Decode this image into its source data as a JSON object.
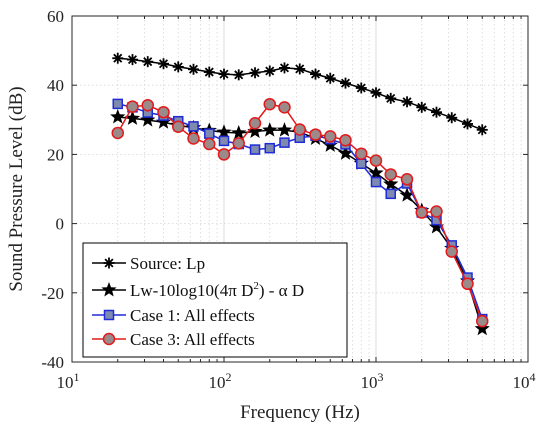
{
  "chart_data": {
    "type": "line",
    "xscale": "log",
    "xlim": [
      10,
      10000
    ],
    "ylim": [
      -40,
      60
    ],
    "grid": true,
    "legend_position": "bottom-left",
    "xlabel": "Frequency (Hz)",
    "ylabel": "Sound Pressure Level (dB)",
    "x_ticks": [
      {
        "value": 10,
        "base": "10",
        "exp": "1"
      },
      {
        "value": 100,
        "base": "10",
        "exp": "2"
      },
      {
        "value": 1000,
        "base": "10",
        "exp": "3"
      },
      {
        "value": 10000,
        "base": "10",
        "exp": "4"
      }
    ],
    "y_ticks": [
      "-40",
      "-20",
      "0",
      "20",
      "40",
      "60"
    ],
    "x": [
      20,
      25,
      31.5,
      40,
      50,
      63,
      80,
      100,
      125,
      160,
      200,
      250,
      315,
      400,
      500,
      630,
      800,
      1000,
      1250,
      1600,
      2000,
      2500,
      3150,
      4000,
      5000
    ],
    "series": [
      {
        "name": "Source: Lp",
        "color": "#000000",
        "marker": "asterisk",
        "values": [
          47.8,
          47.4,
          46.8,
          46.2,
          45.3,
          44.6,
          43.8,
          43.2,
          43.0,
          43.6,
          44.1,
          45.0,
          44.7,
          43.2,
          42.0,
          40.6,
          39.2,
          37.8,
          36.2,
          35.2,
          33.6,
          32.2,
          30.6,
          28.8,
          27.1
        ]
      },
      {
        "name": "Lw-10log10(4π D²) - α D",
        "color": "#000000",
        "marker": "star",
        "values": [
          30.8,
          30.4,
          29.9,
          29.3,
          28.4,
          27.7,
          26.9,
          26.4,
          26.2,
          26.6,
          27.0,
          27.0,
          26.4,
          24.6,
          22.6,
          20.3,
          17.4,
          14.6,
          11.4,
          8.2,
          3.8,
          -1.0,
          -7.2,
          -16.6,
          -30.4
        ]
      },
      {
        "name": "Case 1: All effects",
        "color": "#1f2bd6",
        "marker": "square",
        "values": [
          34.6,
          33.6,
          32.1,
          31.2,
          29.6,
          28.1,
          26.0,
          23.9,
          23.0,
          21.4,
          21.8,
          23.4,
          24.8,
          25.4,
          24.4,
          22.9,
          17.3,
          12.0,
          8.6,
          11.6,
          3.2,
          1.0,
          -6.3,
          -15.6,
          -27.6
        ]
      },
      {
        "name": "Case 3: All effects",
        "color": "#e31a1c",
        "marker": "circle",
        "values": [
          26.2,
          33.8,
          34.2,
          32.2,
          28.0,
          24.6,
          23.0,
          20.0,
          23.2,
          29.0,
          34.5,
          33.6,
          27.2,
          25.7,
          25.2,
          24.1,
          20.2,
          18.2,
          14.2,
          12.8,
          3.2,
          3.5,
          -8.1,
          -17.4,
          -28.2
        ]
      }
    ]
  },
  "legend": {
    "items": [
      {
        "label": "Source: Lp"
      },
      {
        "pre": "Lw-10log10(4",
        "pi": "π",
        "d": " D",
        "sup": "2",
        "post": ") - ",
        "alpha": "α",
        "post2": " D"
      },
      {
        "label": "Case 1: All effects"
      },
      {
        "label": "Case 3: All effects"
      }
    ]
  }
}
